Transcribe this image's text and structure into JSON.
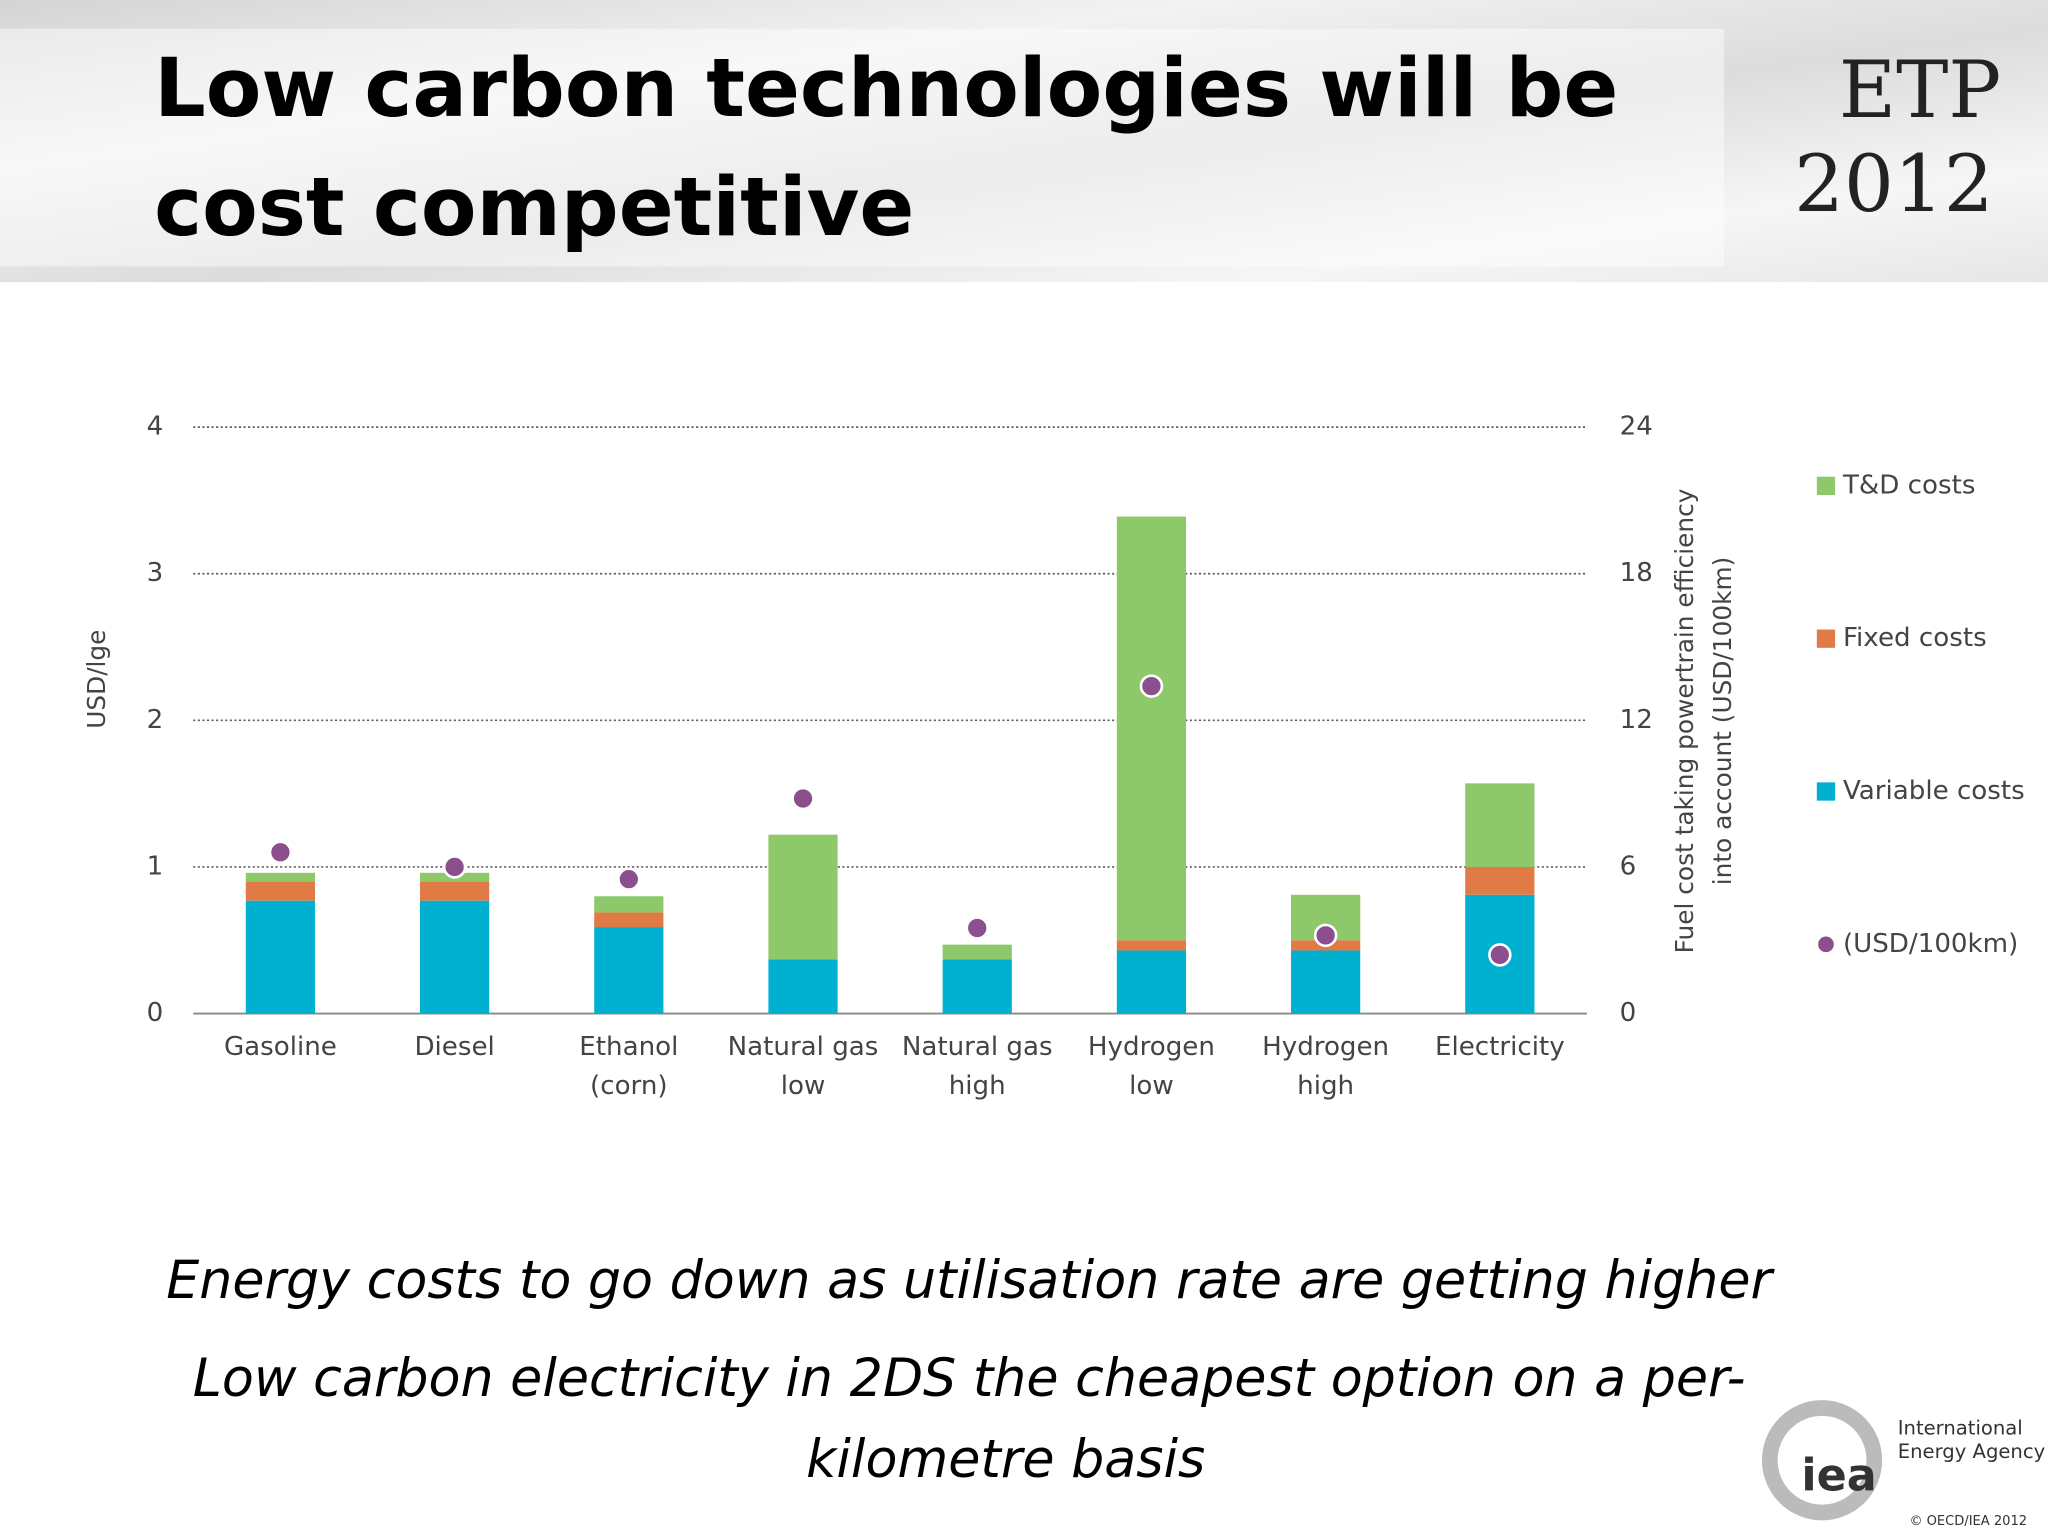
{
  "header": {
    "title": [
      "Low carbon technologies will be",
      "cost competitive"
    ],
    "badge": [
      "ETP",
      "2012"
    ]
  },
  "chart_data": {
    "type": "bar",
    "stacked": true,
    "categories": [
      [
        "Gasoline"
      ],
      [
        "Diesel"
      ],
      [
        "Ethanol",
        "(corn)"
      ],
      [
        "Natural gas",
        "low"
      ],
      [
        "Natural gas",
        "high"
      ],
      [
        "Hydrogen",
        "low"
      ],
      [
        "Hydrogen",
        "high"
      ],
      [
        "Electricity"
      ]
    ],
    "ylabel": "USD/lge",
    "y2label": [
      "Fuel cost taking powertrain efficiency",
      "into account (USD/100km)"
    ],
    "ylim": [
      0,
      4
    ],
    "yticks": [
      0,
      1,
      2,
      3,
      4
    ],
    "y2lim": [
      0,
      24
    ],
    "y2ticks": [
      0,
      6,
      12,
      18,
      24
    ],
    "grid": true,
    "series": [
      {
        "name": "Variable costs",
        "color": "#00b0d0",
        "values": [
          0.77,
          0.77,
          0.59,
          0.37,
          0.37,
          0.43,
          0.43,
          0.81
        ]
      },
      {
        "name": "Fixed costs",
        "color": "#e07b45",
        "values": [
          0.13,
          0.13,
          0.1,
          0,
          0,
          0.07,
          0.07,
          0.19
        ]
      },
      {
        "name": "T&D costs",
        "color": "#8dc86a",
        "values": [
          0.06,
          0.06,
          0.11,
          0.85,
          0.1,
          2.89,
          0.31,
          0.57
        ]
      },
      {
        "name": "(USD/100km)",
        "color": "#8b4f8e",
        "type": "scatter",
        "axis": "y2",
        "values": [
          6.6,
          6.0,
          5.5,
          8.8,
          3.5,
          13.4,
          3.2,
          2.4
        ]
      }
    ]
  },
  "bullets": [
    [
      "Energy costs to go down as utilisation rate are getting higher"
    ],
    [
      "Low carbon electricity in 2DS the cheapest option on a per-",
      "kilometre basis"
    ]
  ],
  "footer": {
    "logo": "iea",
    "agency": [
      "International",
      "Energy Agency"
    ],
    "copyright": "© OECD/IEA 2012"
  }
}
